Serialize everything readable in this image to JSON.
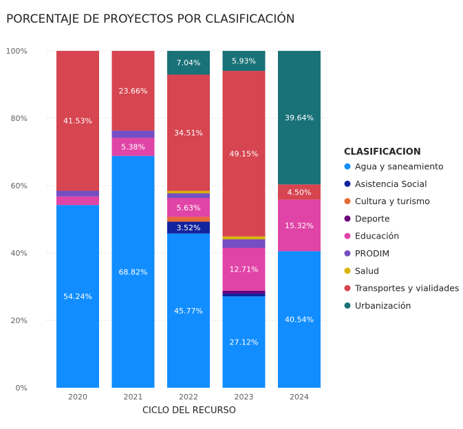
{
  "chart_data": {
    "type": "bar",
    "stacked": true,
    "normalized": true,
    "title": "PORCENTAJE DE PROYECTOS POR CLASIFICACIÓN",
    "xlabel": "CICLO DEL RECURSO",
    "ylabel": "",
    "ylim": [
      0,
      100
    ],
    "yticks": [
      "0%",
      "20%",
      "40%",
      "60%",
      "80%",
      "100%"
    ],
    "categories": [
      "2020",
      "2021",
      "2022",
      "2023",
      "2024"
    ],
    "legend_title": "CLASIFICACION",
    "legend_position": "right",
    "grid": true,
    "series": [
      {
        "name": "Agua y saneamiento",
        "color": "#118DFF",
        "values": [
          54.24,
          68.82,
          45.77,
          27.12,
          40.54
        ],
        "labels": [
          "54.24%",
          "68.82%",
          "45.77%",
          "27.12%",
          "40.54%"
        ]
      },
      {
        "name": "Asistencia Social",
        "color": "#12239E",
        "values": [
          0,
          0,
          3.52,
          0.85,
          0
        ],
        "labels": [
          "",
          "",
          "3.52%",
          "",
          ""
        ]
      },
      {
        "name": "Cultura y turismo",
        "color": "#E66C37",
        "values": [
          0,
          0,
          1.41,
          0,
          0
        ],
        "labels": [
          "",
          "",
          "",
          "",
          ""
        ]
      },
      {
        "name": "Deporte",
        "color": "#6B007B",
        "values": [
          0,
          0,
          0,
          0.85,
          0
        ],
        "labels": [
          "",
          "",
          "",
          "",
          ""
        ]
      },
      {
        "name": "Educación",
        "color": "#E044A7",
        "values": [
          2.54,
          5.38,
          5.63,
          12.71,
          15.32
        ],
        "labels": [
          "",
          "5.38%",
          "5.63%",
          "12.71%",
          "15.32%"
        ]
      },
      {
        "name": "PRODIM",
        "color": "#744EC2",
        "values": [
          1.69,
          2.14,
          1.41,
          2.54,
          0
        ],
        "labels": [
          "",
          "",
          "",
          "",
          ""
        ]
      },
      {
        "name": "Salud",
        "color": "#D9B300",
        "values": [
          0,
          0,
          0.71,
          0.85,
          0
        ],
        "labels": [
          "",
          "",
          "",
          "",
          ""
        ]
      },
      {
        "name": "Transportes y vialidades",
        "color": "#D64550",
        "values": [
          41.53,
          23.66,
          34.51,
          49.15,
          4.5
        ],
        "labels": [
          "41.53%",
          "23.66%",
          "34.51%",
          "49.15%",
          "4.50%"
        ]
      },
      {
        "name": "Urbanización",
        "color": "#197278",
        "values": [
          0,
          0,
          7.04,
          5.93,
          39.64
        ],
        "labels": [
          "",
          "",
          "7.04%",
          "5.93%",
          "39.64%"
        ]
      }
    ]
  }
}
